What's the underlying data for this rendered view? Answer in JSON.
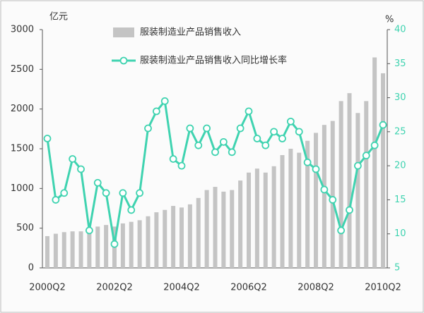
{
  "chart_data": {
    "type": "bar-line",
    "y_label": "亿元",
    "y2_label": "%",
    "categories": [
      "2000Q2",
      null,
      null,
      null,
      null,
      null,
      null,
      null,
      "2002Q2",
      null,
      null,
      null,
      null,
      null,
      null,
      null,
      "2004Q2",
      null,
      null,
      null,
      null,
      null,
      null,
      null,
      "2006Q2",
      null,
      null,
      null,
      null,
      null,
      null,
      null,
      "2008Q2",
      null,
      null,
      null,
      null,
      null,
      null,
      null,
      "2010Q2"
    ],
    "series": [
      {
        "name": "服装制造业产品销售收入",
        "type": "bar",
        "color": "#c4c4c4",
        "values": [
          400,
          430,
          450,
          460,
          460,
          500,
          520,
          540,
          520,
          560,
          580,
          600,
          650,
          700,
          730,
          780,
          760,
          800,
          880,
          980,
          1020,
          960,
          980,
          1100,
          1200,
          1250,
          1200,
          1280,
          1420,
          1500,
          1450,
          1600,
          1700,
          1800,
          1850,
          2100,
          2200,
          1950,
          2100,
          2650,
          2450
        ]
      },
      {
        "name": "服装制造业产品销售收入同比增长率",
        "type": "line",
        "axis": "y2",
        "color": "#3fd3b0",
        "values": [
          24,
          15,
          16,
          21,
          19.5,
          10.5,
          17.5,
          16,
          8.5,
          16,
          13.5,
          16,
          25.5,
          28,
          29.5,
          21,
          20,
          25.5,
          23,
          25.5,
          22,
          23.5,
          22,
          25.5,
          28,
          24,
          23,
          25,
          24,
          26.5,
          25,
          20.5,
          19.5,
          16.5,
          15,
          10.5,
          13.5,
          20,
          21.5,
          23,
          26
        ]
      }
    ],
    "ylim": [
      0,
      3000
    ],
    "yticks": [
      0,
      500,
      1000,
      1500,
      2000,
      2500,
      3000
    ],
    "y2lim": [
      5,
      40
    ],
    "y2ticks": [
      5,
      10,
      15,
      20,
      25,
      30,
      35,
      40
    ]
  }
}
